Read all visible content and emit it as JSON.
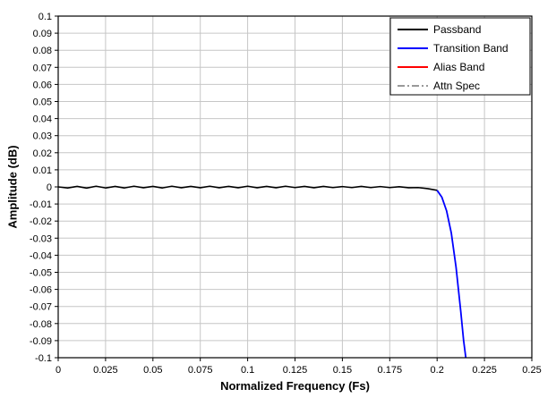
{
  "figure": {
    "background": "#ffffff",
    "plot_border_color": "#000000",
    "grid_color": "#c6c6c6",
    "text_color": "#000000"
  },
  "chart_data": {
    "type": "line",
    "title": "",
    "xlabel": "Normalized Frequency (Fs)",
    "ylabel": "Amplitude (dB)",
    "xlim": [
      0,
      0.25
    ],
    "ylim": [
      -0.1,
      0.1
    ],
    "grid": true,
    "legend_position": "top-right",
    "x_ticks": [
      0,
      0.025,
      0.05,
      0.075,
      0.1,
      0.125,
      0.15,
      0.175,
      0.2,
      0.225,
      0.25
    ],
    "x_tick_labels": [
      "0",
      "0.025",
      "0.05",
      "0.075",
      "0.1",
      "0.125",
      "0.15",
      "0.175",
      "0.2",
      "0.225",
      "0.25"
    ],
    "y_ticks": [
      0.1,
      0.09,
      0.08,
      0.07,
      0.06,
      0.05,
      0.04,
      0.03,
      0.02,
      0.01,
      0,
      -0.01,
      -0.02,
      -0.03,
      -0.04,
      -0.05,
      -0.06,
      -0.07,
      -0.08,
      -0.09,
      -0.1
    ],
    "y_tick_labels": [
      "0.1",
      "0.09",
      "0.08",
      "0.07",
      "0.06",
      "0.05",
      "0.04",
      "0.03",
      "0.02",
      "0.01",
      "0",
      "-0.01",
      "-0.02",
      "-0.03",
      "-0.04",
      "-0.05",
      "-0.06",
      "-0.07",
      "-0.08",
      "-0.09",
      "-0.1"
    ],
    "series": [
      {
        "name": "Passband",
        "color": "#000000",
        "style": "solid",
        "width": 1.6,
        "x": [
          0,
          0.005,
          0.01,
          0.015,
          0.02,
          0.025,
          0.03,
          0.035,
          0.04,
          0.045,
          0.05,
          0.055,
          0.06,
          0.065,
          0.07,
          0.075,
          0.08,
          0.085,
          0.09,
          0.095,
          0.1,
          0.105,
          0.11,
          0.115,
          0.12,
          0.125,
          0.13,
          0.135,
          0.14,
          0.145,
          0.15,
          0.155,
          0.16,
          0.165,
          0.17,
          0.175,
          0.18,
          0.185,
          0.19,
          0.195,
          0.2
        ],
        "y": [
          0,
          -0.0006,
          0.0003,
          -0.0007,
          0.0004,
          -0.0006,
          0.0003,
          -0.0006,
          0.0004,
          -0.0005,
          0.0003,
          -0.0006,
          0.0004,
          -0.0005,
          0.0003,
          -0.0005,
          0.0004,
          -0.0005,
          0.0003,
          -0.0005,
          0.0004,
          -0.0005,
          0.0003,
          -0.0005,
          0.0004,
          -0.0004,
          0.0003,
          -0.0005,
          0.0003,
          -0.0004,
          0.0002,
          -0.0004,
          0.0003,
          -0.0004,
          0.0002,
          -0.0004,
          0.0001,
          -0.0005,
          -0.0004,
          -0.001,
          -0.002
        ]
      },
      {
        "name": "Transition Band",
        "color": "#0000ff",
        "style": "solid",
        "width": 1.8,
        "x": [
          0.2,
          0.2025,
          0.205,
          0.2075,
          0.21,
          0.2125,
          0.214,
          0.2155,
          0.217
        ],
        "y": [
          -0.002,
          -0.006,
          -0.014,
          -0.027,
          -0.047,
          -0.073,
          -0.09,
          -0.103,
          -0.125
        ]
      },
      {
        "name": "Alias Band",
        "color": "#ff0000",
        "style": "solid",
        "width": 1.6,
        "visible_in_plot": false,
        "x": [],
        "y": []
      },
      {
        "name": "Attn Spec",
        "color": "#999999",
        "style": "dash-dot",
        "width": 1.6,
        "visible_in_plot": false,
        "x": [],
        "y": []
      }
    ]
  }
}
